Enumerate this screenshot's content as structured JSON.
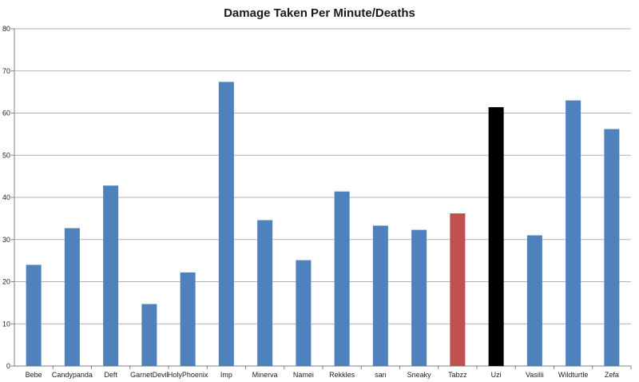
{
  "chart_data": {
    "type": "bar",
    "title": "Damage Taken Per Minute/Deaths",
    "xlabel": "",
    "ylabel": "",
    "ylim": [
      0,
      80
    ],
    "yticks": [
      0,
      10,
      20,
      30,
      40,
      50,
      60,
      70,
      80
    ],
    "grid": true,
    "legend": "none",
    "categories": [
      "Bebe",
      "Candypanda",
      "Deft",
      "GarnetDevil",
      "HolyPhoenix",
      "Imp",
      "Minerva",
      "Namei",
      "Rekkles",
      "san",
      "Sneaky",
      "Tabzz",
      "Uzi",
      "Vasilii",
      "Wildturtle",
      "Zefa"
    ],
    "values": [
      24,
      32.7,
      42.8,
      14.7,
      22.2,
      67.4,
      34.6,
      25.1,
      41.4,
      33.3,
      32.3,
      36.2,
      61.4,
      31.0,
      63.0,
      56.2
    ],
    "colors": {
      "default": "#4f81bd",
      "Tabzz": "#c0504d",
      "Uzi": "#000000"
    }
  }
}
